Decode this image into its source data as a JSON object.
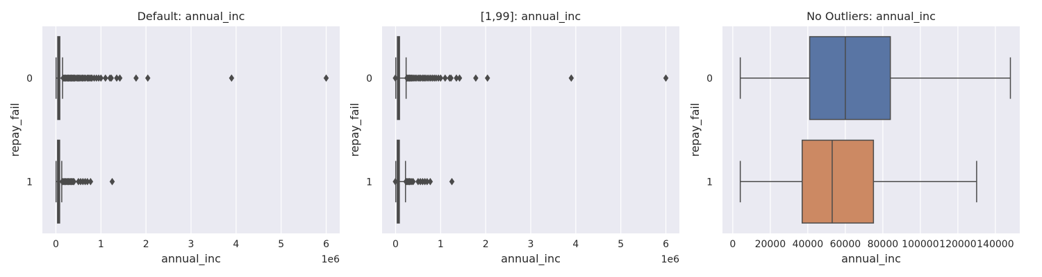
{
  "chart_data": [
    {
      "type": "box",
      "title": "Default: annual_inc",
      "xlabel": "annual_inc",
      "ylabel": "repay_fail",
      "x_offset_label": "1e6",
      "xticks": [
        0,
        1,
        2,
        3,
        4,
        5,
        6
      ],
      "xlim": [
        -0.3,
        6.3
      ],
      "categories": [
        "0",
        "1"
      ],
      "grid": true,
      "box_fill": "#4c4c4c",
      "boxes": [
        {
          "category": "0",
          "whisker_low": 0.004,
          "q1": 0.041,
          "median": 0.06,
          "q3": 0.084,
          "whisker_high": 0.148,
          "outliers": [
            0.16,
            0.18,
            0.2,
            0.22,
            0.24,
            0.26,
            0.28,
            0.3,
            0.32,
            0.34,
            0.36,
            0.38,
            0.4,
            0.42,
            0.45,
            0.48,
            0.5,
            0.52,
            0.55,
            0.58,
            0.6,
            0.63,
            0.66,
            0.7,
            0.72,
            0.75,
            0.78,
            0.8,
            0.85,
            0.9,
            0.95,
            1.0,
            1.1,
            1.2,
            1.23,
            1.35,
            1.42,
            1.78,
            2.04,
            3.9,
            6.0
          ]
        },
        {
          "category": "1",
          "whisker_low": 0.004,
          "q1": 0.037,
          "median": 0.053,
          "q3": 0.075,
          "whisker_high": 0.13,
          "outliers": [
            0.14,
            0.16,
            0.18,
            0.2,
            0.22,
            0.24,
            0.26,
            0.28,
            0.3,
            0.32,
            0.34,
            0.36,
            0.38,
            0.4,
            0.5,
            0.55,
            0.6,
            0.65,
            0.7,
            0.77,
            1.25
          ]
        }
      ]
    },
    {
      "type": "box",
      "title": "[1,99]: annual_inc",
      "xlabel": "annual_inc",
      "ylabel": "repay_fail",
      "x_offset_label": "1e6",
      "xticks": [
        0,
        1,
        2,
        3,
        4,
        5,
        6
      ],
      "xlim": [
        -0.3,
        6.3
      ],
      "categories": [
        "0",
        "1"
      ],
      "grid": true,
      "box_fill": "#4c4c4c",
      "boxes": [
        {
          "category": "0",
          "whisker_low": 0.004,
          "q1": 0.041,
          "median": 0.06,
          "q3": 0.084,
          "whisker_high": 0.234,
          "outliers": [
            -0.005,
            0.25,
            0.27,
            0.29,
            0.31,
            0.33,
            0.35,
            0.37,
            0.4,
            0.43,
            0.46,
            0.5,
            0.53,
            0.56,
            0.6,
            0.63,
            0.66,
            0.7,
            0.74,
            0.78,
            0.82,
            0.86,
            0.9,
            0.95,
            1.0,
            1.1,
            1.2,
            1.23,
            1.35,
            1.42,
            1.78,
            2.04,
            3.9,
            6.0
          ]
        },
        {
          "category": "1",
          "whisker_low": 0.004,
          "q1": 0.037,
          "median": 0.053,
          "q3": 0.075,
          "whisker_high": 0.22,
          "outliers": [
            -0.005,
            0.23,
            0.25,
            0.27,
            0.29,
            0.31,
            0.33,
            0.36,
            0.39,
            0.5,
            0.55,
            0.6,
            0.65,
            0.7,
            0.77,
            1.25
          ]
        }
      ]
    },
    {
      "type": "box",
      "title": "No Outliers: annual_inc",
      "xlabel": "annual_inc",
      "ylabel": "repay_fail",
      "x_offset_label": "",
      "xticks": [
        0,
        20000,
        40000,
        60000,
        80000,
        100000,
        120000,
        140000
      ],
      "xlim": [
        -5500,
        153000
      ],
      "categories": [
        "0",
        "1"
      ],
      "grid": true,
      "boxes": [
        {
          "category": "0",
          "whisker_low": 4000,
          "q1": 41000,
          "median": 60000,
          "q3": 84000,
          "whisker_high": 148000,
          "fill": "#5975a4",
          "outliers": []
        },
        {
          "category": "1",
          "whisker_low": 4000,
          "q1": 37000,
          "median": 53000,
          "q3": 75000,
          "whisker_high": 130000,
          "fill": "#cc8963",
          "outliers": []
        }
      ]
    }
  ]
}
